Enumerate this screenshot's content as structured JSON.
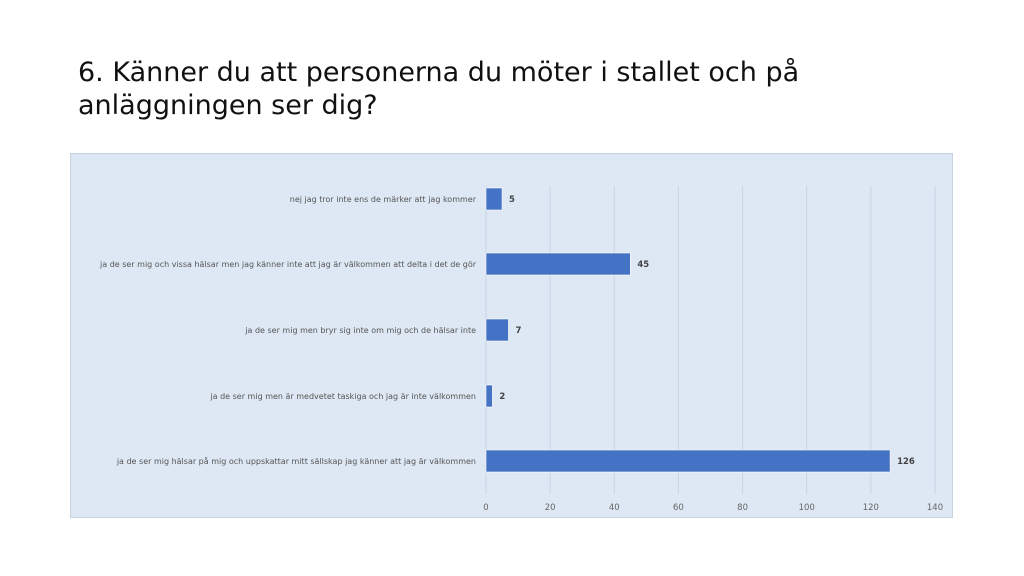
{
  "chart_data": {
    "type": "bar",
    "orientation": "horizontal",
    "title": "6. Känner du att personerna du möter i stallet och på anläggningen ser dig?",
    "categories": [
      "nej jag tror inte ens de märker att jag kommer",
      "ja de ser mig och vissa hälsar men jag känner inte att jag är välkommen att delta i det de gör",
      "ja de ser mig men bryr sig inte om mig och de hälsar inte",
      "ja de ser mig men är medvetet taskiga och jag är inte välkommen",
      "ja de ser mig hälsar på mig och uppskattar mitt sällskap jag känner att jag är välkommen"
    ],
    "values": [
      5,
      45,
      7,
      2,
      126
    ],
    "xlim": [
      0,
      140
    ],
    "xticks": [
      0,
      20,
      40,
      60,
      80,
      100,
      120,
      140
    ],
    "xlabel": "",
    "ylabel": "",
    "grid": "vertical",
    "bar_color": "#4472c4",
    "background": "#dde8f4"
  }
}
